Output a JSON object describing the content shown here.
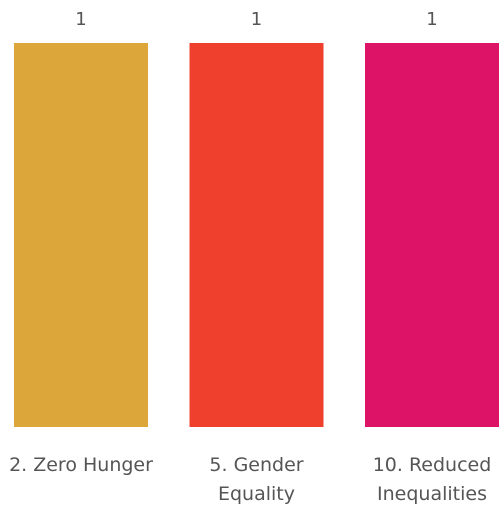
{
  "chart_data": {
    "type": "bar",
    "categories": [
      [
        "2. Zero Hunger"
      ],
      [
        "5. Gender",
        "Equality"
      ],
      [
        "10. Reduced",
        "Inequalities"
      ]
    ],
    "values": [
      1,
      1,
      1
    ],
    "value_labels": [
      "1",
      "1",
      "1"
    ],
    "colors": [
      "#DDA63A",
      "#EF402D",
      "#DD1367"
    ],
    "ylim": [
      0,
      1
    ],
    "grid": false,
    "legend": "none"
  }
}
